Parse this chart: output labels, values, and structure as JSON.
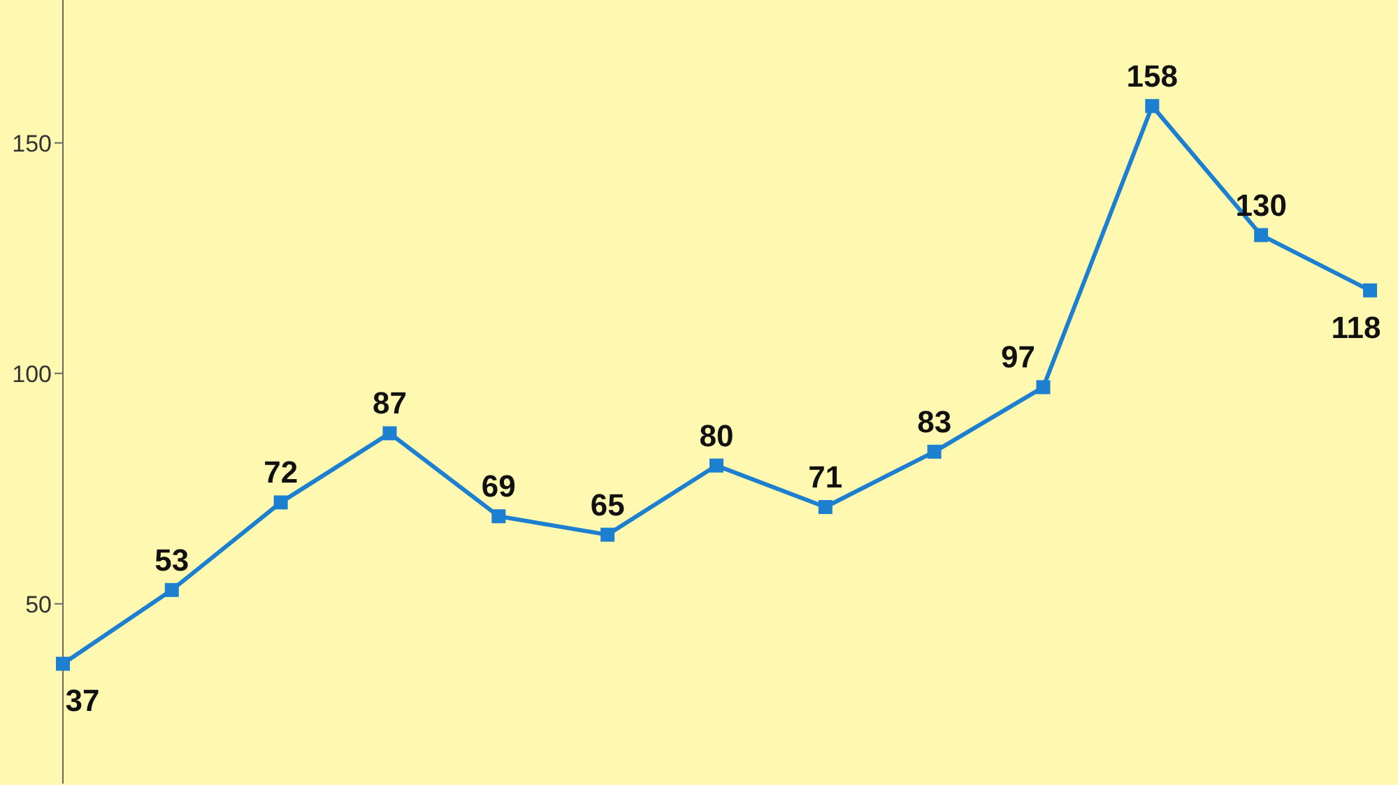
{
  "chart_data": {
    "type": "line",
    "categories": [
      null,
      null,
      null,
      null,
      null,
      null,
      null,
      null,
      null,
      null,
      null,
      null,
      null
    ],
    "series": [
      {
        "color": "#1c7fcf",
        "values": [
          37,
          53,
          72,
          87,
          69,
          65,
          80,
          71,
          83,
          97,
          158,
          130,
          118
        ]
      }
    ],
    "ylim": [
      11,
      181
    ],
    "yticks": [
      50,
      100,
      150
    ],
    "data_labels": true,
    "marker": "square"
  }
}
